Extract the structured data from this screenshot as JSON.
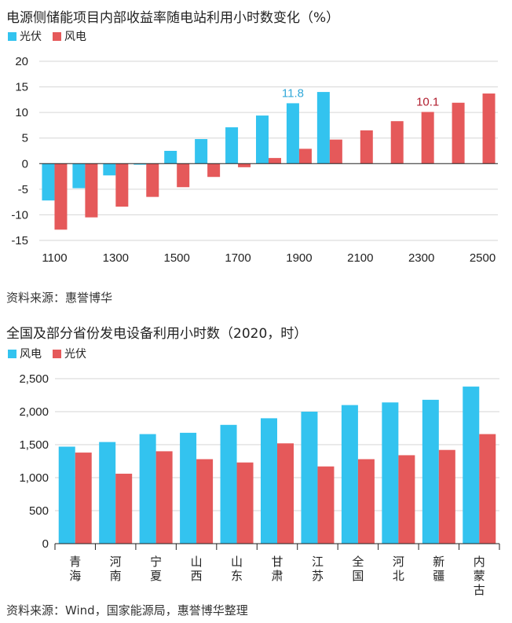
{
  "colors": {
    "blue": "#33C3EF",
    "red": "#E5595A",
    "grid": "#d6d6d6",
    "axis": "#222222"
  },
  "chart1": {
    "title": "电源侧储能项目内部收益率随电站利用小时数变化（%）",
    "legend": [
      "光伏",
      "风电"
    ],
    "source": "资料来源：惠誉博华"
  },
  "chart2": {
    "title": "全国及部分省份发电设备利用小时数（2020，时）",
    "legend": [
      "风电",
      "光伏"
    ],
    "source": "资料来源：Wind，国家能源局，惠誉博华整理"
  },
  "chart_data": [
    {
      "type": "bar",
      "title": "电源侧储能项目内部收益率随电站利用小时数变化（%）",
      "categories": [
        "1100",
        "1200",
        "1300",
        "1400",
        "1500",
        "1600",
        "1700",
        "1800",
        "1900",
        "2000",
        "2100",
        "2200",
        "2300",
        "2400",
        "2500"
      ],
      "x_tick_labels": [
        "1100",
        "1300",
        "1500",
        "1700",
        "1900",
        "2100",
        "2300",
        "2500"
      ],
      "series": [
        {
          "name": "光伏",
          "color": "#33C3EF",
          "values": [
            -7.2,
            -4.8,
            -2.3,
            -0.2,
            2.5,
            4.8,
            7.1,
            9.4,
            11.8,
            14.0,
            null,
            null,
            null,
            null,
            null
          ]
        },
        {
          "name": "风电",
          "color": "#E5595A",
          "values": [
            -12.9,
            -10.5,
            -8.4,
            -6.5,
            -4.6,
            -2.6,
            -0.7,
            1.1,
            2.9,
            4.7,
            6.5,
            8.3,
            10.1,
            11.9,
            13.7
          ]
        }
      ],
      "annotations": [
        {
          "text": "11.8",
          "series": 0,
          "category": "1900",
          "color": "#33A9D9"
        },
        {
          "text": "10.1",
          "series": 1,
          "category": "2300",
          "color": "#B01E2F"
        }
      ],
      "ylim": [
        -15,
        20
      ],
      "yticks": [
        20,
        15,
        10,
        5,
        0,
        -5,
        -10,
        -15
      ],
      "grid": true,
      "legend_position": "top-left"
    },
    {
      "type": "bar",
      "title": "全国及部分省份发电设备利用小时数（2020，时）",
      "categories": [
        {
          "l1": "青",
          "l2": "海",
          "l3": ""
        },
        {
          "l1": "河",
          "l2": "南",
          "l3": ""
        },
        {
          "l1": "宁",
          "l2": "夏",
          "l3": ""
        },
        {
          "l1": "山",
          "l2": "西",
          "l3": ""
        },
        {
          "l1": "山",
          "l2": "东",
          "l3": ""
        },
        {
          "l1": "甘",
          "l2": "肃",
          "l3": ""
        },
        {
          "l1": "江",
          "l2": "苏",
          "l3": ""
        },
        {
          "l1": "全",
          "l2": "国",
          "l3": ""
        },
        {
          "l1": "河",
          "l2": "北",
          "l3": ""
        },
        {
          "l1": "新",
          "l2": "疆",
          "l3": ""
        },
        {
          "l1": "内",
          "l2": "蒙",
          "l3": "古"
        }
      ],
      "series": [
        {
          "name": "风电",
          "color": "#33C3EF",
          "values": [
            1470,
            1540,
            1660,
            1680,
            1800,
            1900,
            2000,
            2100,
            2140,
            2180,
            2380
          ]
        },
        {
          "name": "光伏",
          "color": "#E5595A",
          "values": [
            1380,
            1060,
            1400,
            1280,
            1230,
            1520,
            1170,
            1280,
            1340,
            1420,
            1660
          ]
        }
      ],
      "ylim": [
        0,
        2500
      ],
      "yticks": [
        2500,
        2000,
        1500,
        1000,
        500,
        0
      ],
      "ytick_labels": [
        "2,500",
        "2,000",
        "1,500",
        "1,000",
        "500",
        "0"
      ],
      "grid": true,
      "legend_position": "top-left"
    }
  ]
}
